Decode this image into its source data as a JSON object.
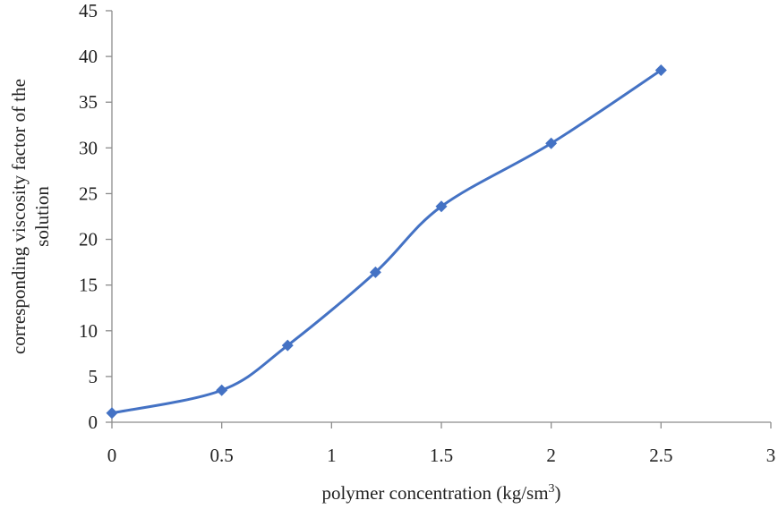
{
  "chart_data": {
    "type": "line",
    "title": "",
    "xlabel_main": "polymer concentration (kg/sm",
    "xlabel_sup": "3",
    "xlabel_close": ")",
    "ylabel_line1": "corresponding viscosity factor of the",
    "ylabel_line2": "solution",
    "xlim": [
      0,
      3
    ],
    "ylim": [
      0,
      45
    ],
    "x_ticks": [
      "0",
      "0.5",
      "1",
      "1.5",
      "2",
      "2.5",
      "3"
    ],
    "y_ticks": [
      "0",
      "5",
      "10",
      "15",
      "20",
      "25",
      "30",
      "35",
      "40",
      "45"
    ],
    "grid": false,
    "legend": "none",
    "series": [
      {
        "color": "#4472c4",
        "marker": "diamond",
        "smooth": true,
        "points": [
          {
            "x": 0,
            "y": 1
          },
          {
            "x": 0.5,
            "y": 3.5
          },
          {
            "x": 0.8,
            "y": 8.4
          },
          {
            "x": 1.2,
            "y": 16.4
          },
          {
            "x": 1.5,
            "y": 23.6
          },
          {
            "x": 2,
            "y": 30.5
          },
          {
            "x": 2.5,
            "y": 38.5
          }
        ]
      }
    ]
  }
}
